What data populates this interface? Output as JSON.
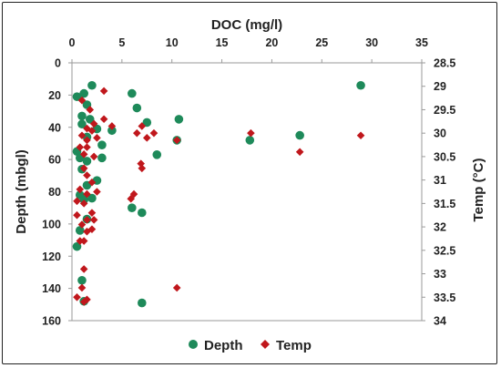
{
  "chart_data": {
    "type": "scatter",
    "xlabel": "DOC (mg/l)",
    "ylabel": "Depth (mbgl)",
    "y2label": "Temp (°C)",
    "xlim": [
      0,
      35
    ],
    "ylim": [
      0,
      160
    ],
    "y2lim": [
      28.5,
      34
    ],
    "x_ticks": [
      "0",
      "5",
      "10",
      "15",
      "20",
      "25",
      "30",
      "35"
    ],
    "y_ticks": [
      "0",
      "20",
      "40",
      "60",
      "80",
      "100",
      "120",
      "140",
      "160"
    ],
    "y2_ticks": [
      "28.5",
      "29",
      "29.5",
      "30",
      "30.5",
      "31",
      "31.5",
      "32",
      "32.5",
      "33",
      "33.5",
      "34"
    ],
    "grid": false,
    "legend_position": "bottom",
    "colors": {
      "Depth": "#1e8a5a",
      "Temp": "#c0171c"
    },
    "series": [
      {
        "name": "Depth",
        "axis": "left",
        "marker": "circle",
        "points": [
          [
            2.0,
            14
          ],
          [
            0.5,
            21
          ],
          [
            1.2,
            19
          ],
          [
            6.0,
            19
          ],
          [
            28.9,
            14
          ],
          [
            1.5,
            26
          ],
          [
            6.5,
            28
          ],
          [
            1.0,
            33
          ],
          [
            1.8,
            35
          ],
          [
            7.5,
            37
          ],
          [
            10.7,
            35
          ],
          [
            1.0,
            38
          ],
          [
            2.5,
            41
          ],
          [
            4.0,
            42
          ],
          [
            22.8,
            45
          ],
          [
            1.5,
            46
          ],
          [
            3.0,
            51
          ],
          [
            17.8,
            48
          ],
          [
            10.5,
            48
          ],
          [
            0.5,
            55
          ],
          [
            8.5,
            57
          ],
          [
            0.8,
            59
          ],
          [
            1.5,
            61
          ],
          [
            3.0,
            59
          ],
          [
            1.0,
            66
          ],
          [
            2.5,
            73
          ],
          [
            1.5,
            76
          ],
          [
            0.8,
            82
          ],
          [
            2.0,
            84
          ],
          [
            1.2,
            85
          ],
          [
            6.0,
            90
          ],
          [
            7.0,
            93
          ],
          [
            1.5,
            97
          ],
          [
            0.8,
            104
          ],
          [
            0.5,
            114
          ],
          [
            1.0,
            135
          ],
          [
            7.0,
            149
          ],
          [
            1.2,
            148
          ]
        ]
      },
      {
        "name": "Temp",
        "axis": "right",
        "marker": "diamond",
        "points": [
          [
            3.2,
            29.1
          ],
          [
            1.0,
            29.3
          ],
          [
            1.8,
            29.5
          ],
          [
            3.2,
            29.7
          ],
          [
            2.2,
            29.8
          ],
          [
            4.0,
            29.85
          ],
          [
            7.0,
            29.85
          ],
          [
            1.5,
            29.9
          ],
          [
            2.0,
            29.95
          ],
          [
            6.5,
            30.0
          ],
          [
            8.2,
            30.0
          ],
          [
            17.9,
            30.0
          ],
          [
            28.9,
            30.05
          ],
          [
            1.0,
            30.05
          ],
          [
            1.5,
            30.15
          ],
          [
            2.5,
            30.1
          ],
          [
            10.5,
            30.15
          ],
          [
            7.5,
            30.1
          ],
          [
            0.8,
            30.3
          ],
          [
            1.5,
            30.3
          ],
          [
            1.2,
            30.45
          ],
          [
            22.8,
            30.4
          ],
          [
            2.2,
            30.5
          ],
          [
            6.9,
            30.65
          ],
          [
            1.2,
            30.75
          ],
          [
            7.0,
            30.75
          ],
          [
            1.5,
            30.9
          ],
          [
            2.0,
            31.05
          ],
          [
            0.8,
            31.2
          ],
          [
            2.5,
            31.25
          ],
          [
            1.5,
            31.3
          ],
          [
            6.2,
            31.3
          ],
          [
            5.9,
            31.4
          ],
          [
            0.5,
            31.45
          ],
          [
            1.2,
            31.5
          ],
          [
            2.0,
            31.7
          ],
          [
            0.5,
            31.75
          ],
          [
            1.5,
            31.85
          ],
          [
            2.2,
            31.85
          ],
          [
            1.0,
            31.95
          ],
          [
            1.5,
            32.1
          ],
          [
            2.0,
            32.05
          ],
          [
            0.8,
            32.3
          ],
          [
            1.2,
            32.3
          ],
          [
            1.2,
            32.9
          ],
          [
            10.5,
            33.3
          ],
          [
            1.0,
            33.3
          ],
          [
            0.5,
            33.5
          ],
          [
            1.5,
            33.55
          ],
          [
            1.2,
            33.6
          ]
        ]
      }
    ]
  }
}
